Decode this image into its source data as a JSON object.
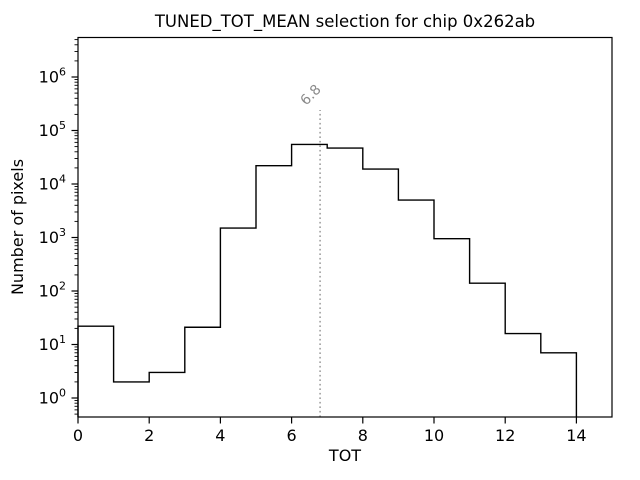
{
  "chart_data": {
    "type": "bar",
    "subtype": "step-histogram",
    "title": "TUNED_TOT_MEAN selection for chip 0x262ab",
    "xlabel": "TOT",
    "ylabel": "Number of pixels",
    "yscale": "log",
    "grid": false,
    "legend": null,
    "bin_edges": [
      0,
      1,
      2,
      3,
      4,
      5,
      6,
      7,
      8,
      9,
      10,
      11,
      12,
      13,
      14
    ],
    "counts": [
      22,
      2,
      3,
      21,
      1500,
      22000,
      55000,
      47000,
      19000,
      5000,
      950,
      140,
      16,
      7
    ],
    "xlim": [
      0,
      15
    ],
    "ylim": [
      0.44,
      5500000
    ],
    "xticks": [
      0,
      2,
      4,
      6,
      8,
      10,
      12,
      14
    ],
    "ytick_exponents": [
      0,
      1,
      2,
      3,
      4,
      5,
      6
    ],
    "line_color": "#000000",
    "vline": {
      "x": 6.8,
      "label": "6.8",
      "color": "#999999",
      "style": "dotted",
      "label_color": "#8a8a8a",
      "label_rotation_deg": -45
    }
  }
}
